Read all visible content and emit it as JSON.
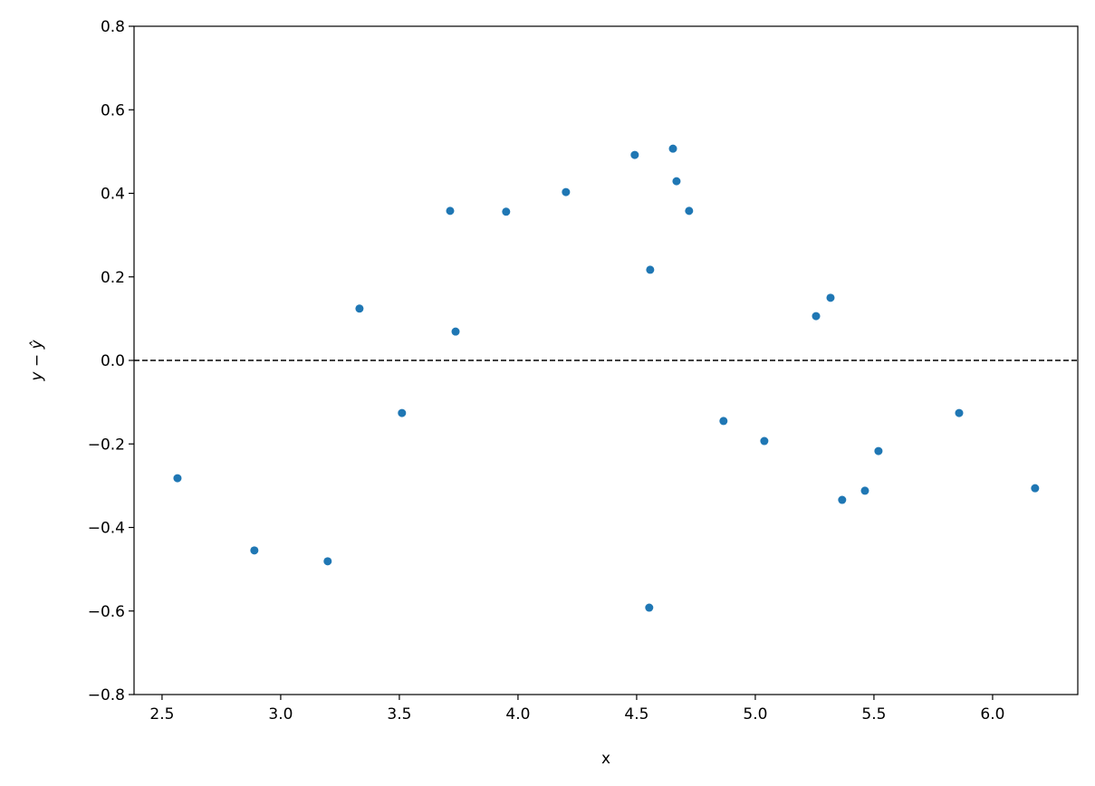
{
  "chart_data": {
    "type": "scatter",
    "x_label": "x",
    "y_label": "y − ŷ",
    "x": [
      2.565,
      2.889,
      3.198,
      3.332,
      3.511,
      3.714,
      3.737,
      3.95,
      4.202,
      4.492,
      4.653,
      4.668,
      4.721,
      4.557,
      4.553,
      4.866,
      5.038,
      5.256,
      5.317,
      5.366,
      5.462,
      5.519,
      5.859,
      6.179
    ],
    "values": [
      -0.282,
      -0.455,
      -0.481,
      0.124,
      -0.126,
      0.358,
      0.069,
      0.356,
      0.403,
      0.492,
      0.507,
      0.429,
      0.358,
      0.217,
      -0.592,
      -0.145,
      -0.193,
      0.106,
      0.15,
      -0.334,
      -0.312,
      -0.217,
      -0.126,
      -0.306
    ],
    "color": "#1f77b4",
    "hlines": [
      0
    ],
    "xlim": [
      2.382,
      6.359
    ],
    "ylim": [
      -0.8,
      0.8
    ],
    "xticks": [
      2.5,
      {
        "value": 3.0,
        "label": "3.0"
      },
      3.5,
      {
        "value": 4.0,
        "label": "4.0"
      },
      4.5,
      {
        "value": 5.0,
        "label": "5.0"
      },
      5.5,
      {
        "value": 6.0,
        "label": "6.0"
      }
    ],
    "yticks": [
      {
        "value": -0.8,
        "label": "−0.8"
      },
      {
        "value": -0.6,
        "label": "−0.6"
      },
      {
        "value": -0.4,
        "label": "−0.4"
      },
      {
        "value": -0.2,
        "label": "−0.2"
      },
      {
        "value": 0.0,
        "label": "0.0"
      },
      0.2,
      0.4,
      0.6,
      0.8
    ],
    "grid": false
  }
}
